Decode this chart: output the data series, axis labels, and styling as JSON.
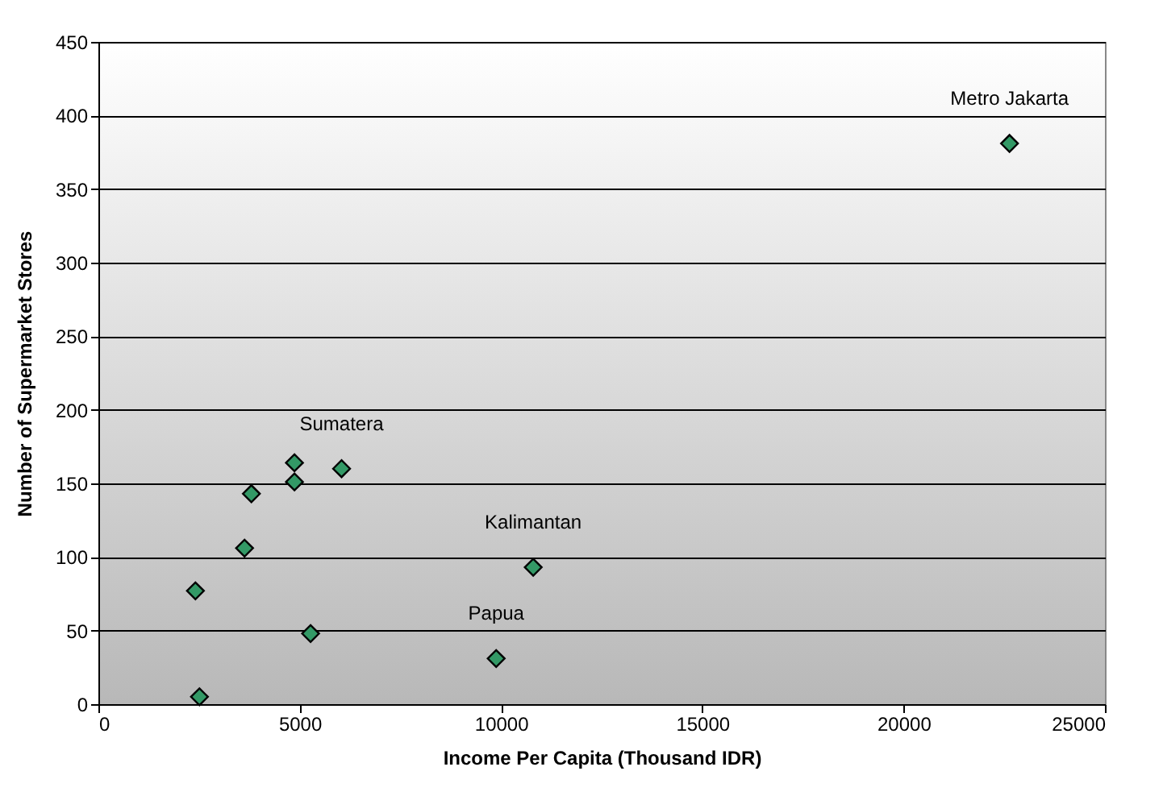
{
  "chart_data": {
    "type": "scatter",
    "xlabel": "Income Per Capita (Thousand IDR)",
    "ylabel": "Number of Supermarket Stores",
    "x": [
      22630,
      4870,
      6040,
      4870,
      3800,
      3630,
      2410,
      5270,
      2510,
      10800,
      9880
    ],
    "series": [
      {
        "color": "#339966",
        "values": [
          381,
          164,
          160,
          151,
          143,
          106,
          77,
          48,
          5,
          93,
          31
        ]
      }
    ],
    "xlim": [
      0,
      25000
    ],
    "xticks": [
      0,
      5000,
      10000,
      15000,
      20000,
      25000
    ],
    "ylim": [
      0,
      450
    ],
    "yticks": [
      0,
      50,
      100,
      150,
      200,
      250,
      300,
      350,
      400,
      450
    ],
    "grid": "y",
    "marker": "diamond",
    "annotations": [
      {
        "text": "Metro Jakarta",
        "x": 22630,
        "y": 381
      },
      {
        "text": "Sumatera",
        "x": 6040,
        "y": 160
      },
      {
        "text": "Kalimantan",
        "x": 10800,
        "y": 93
      },
      {
        "text": "Papua",
        "x": 9880,
        "y": 31
      }
    ]
  }
}
